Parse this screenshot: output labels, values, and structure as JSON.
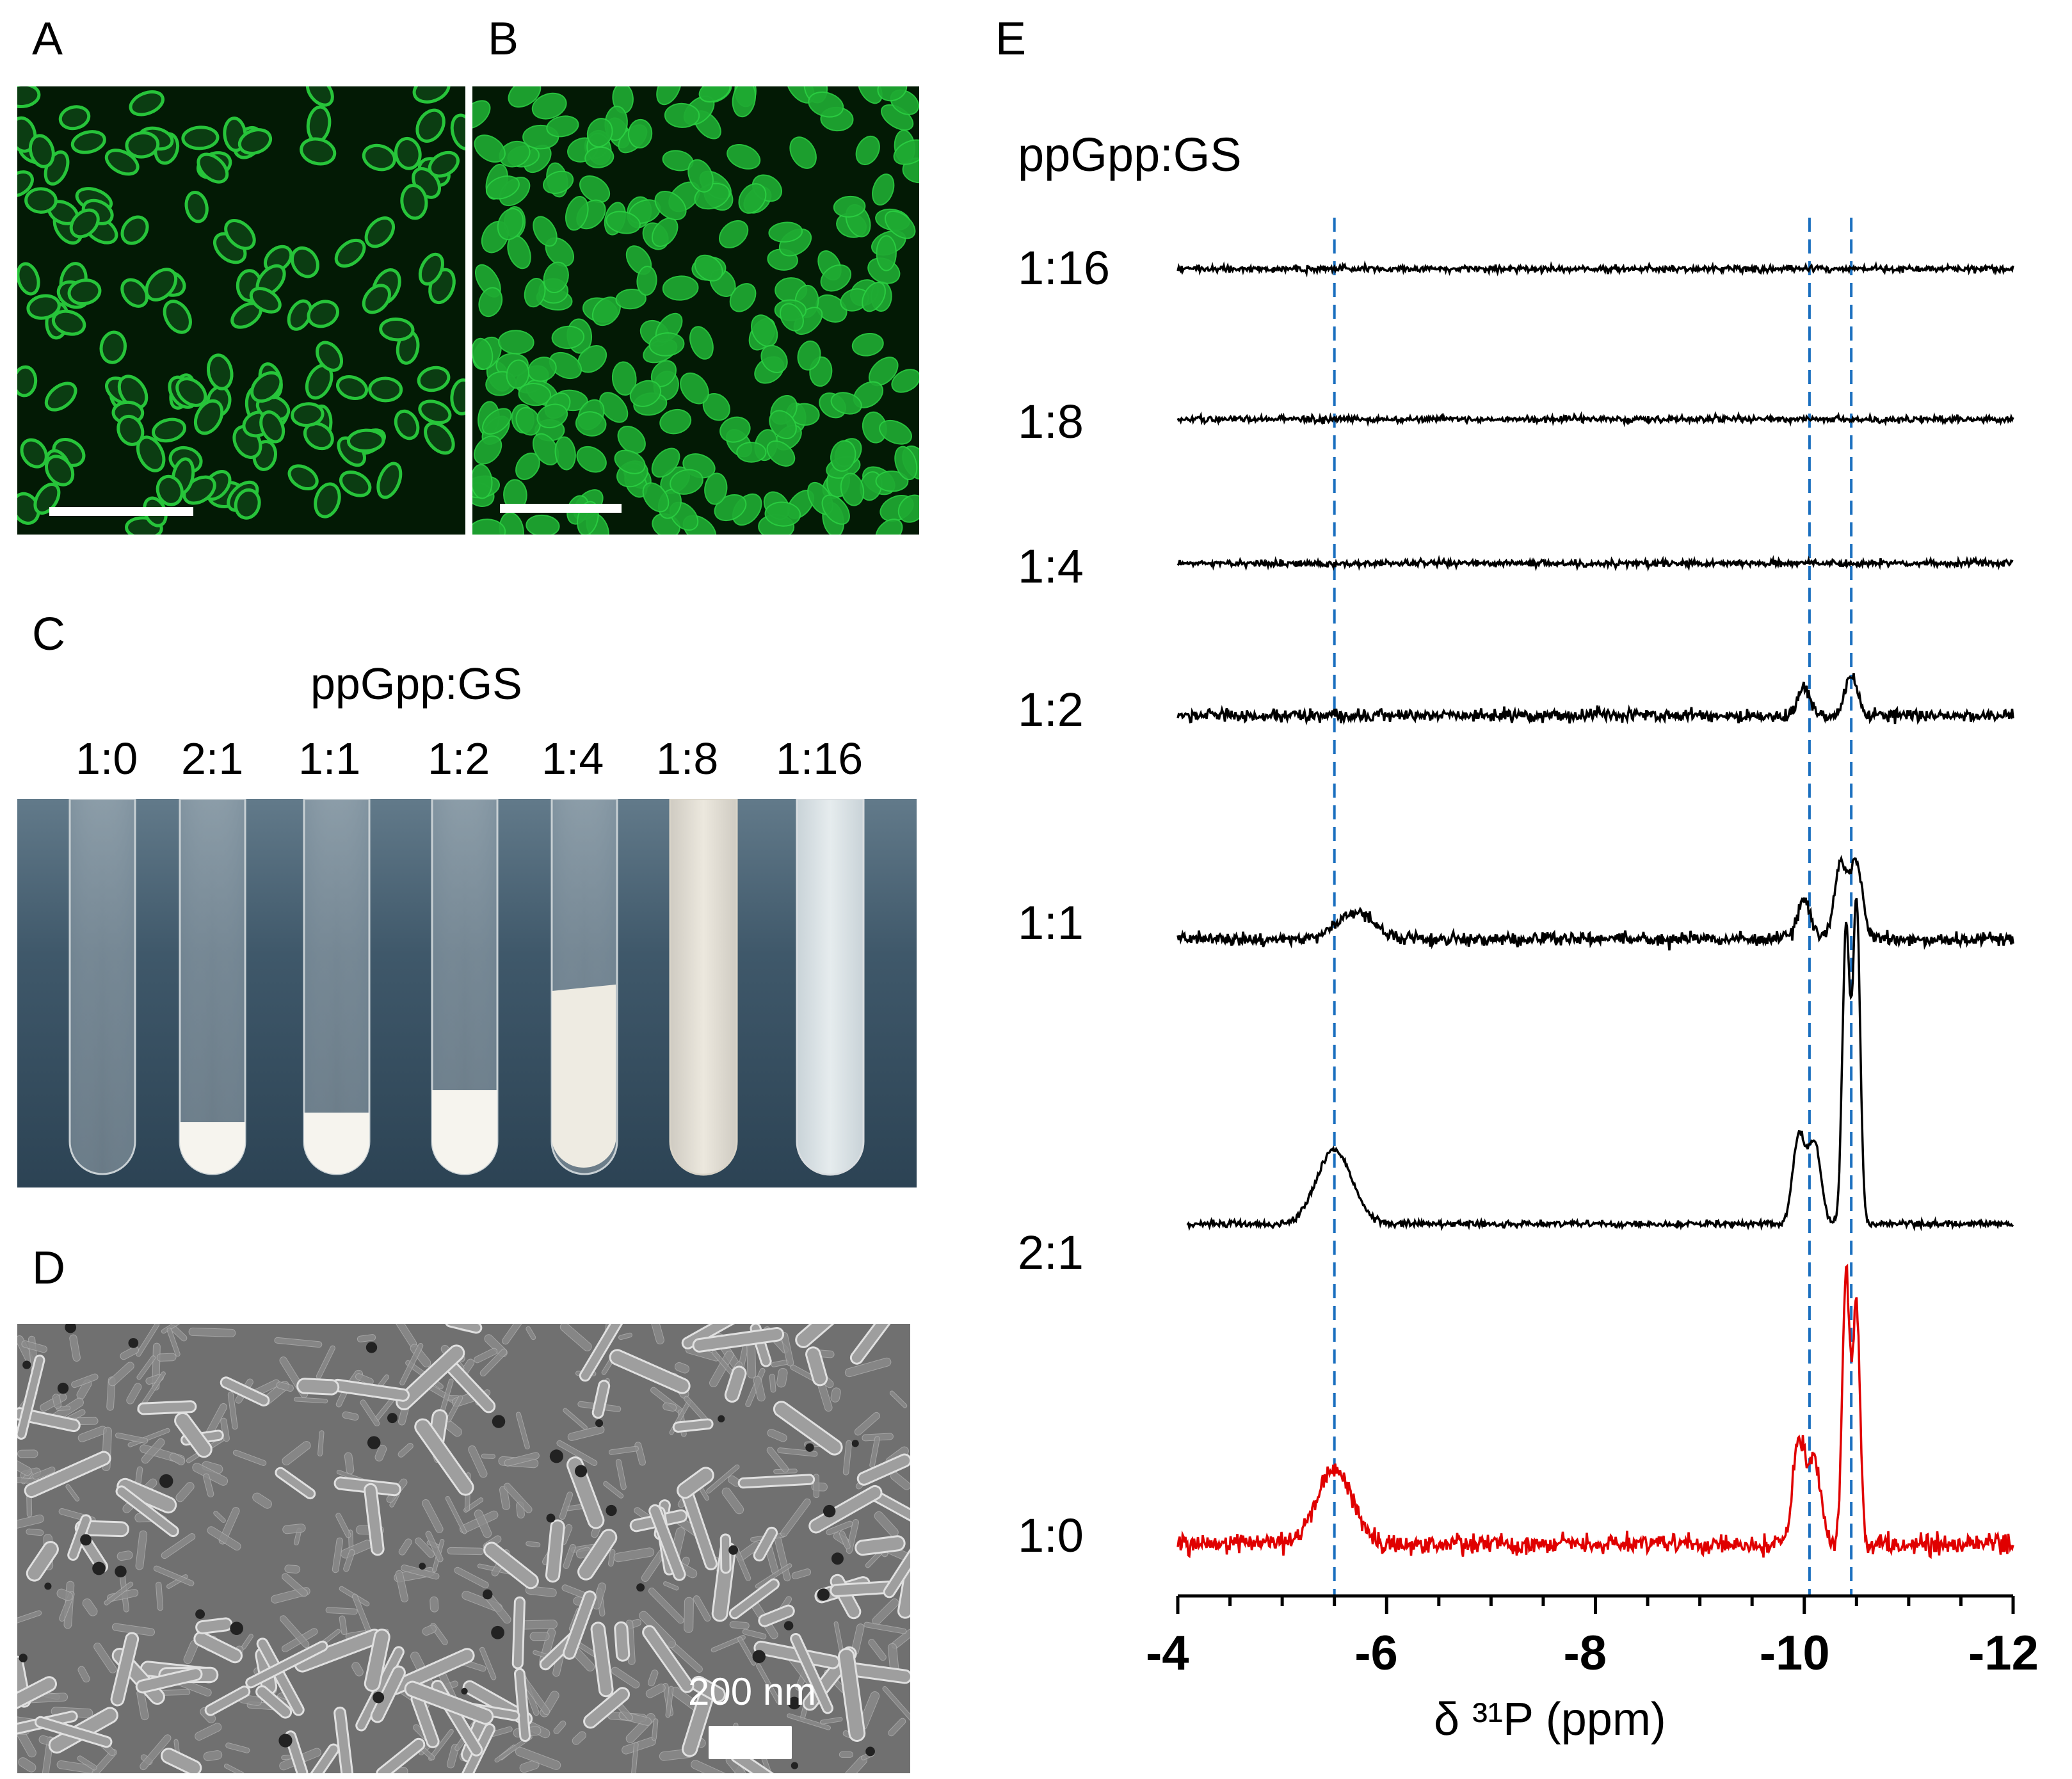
{
  "panels": {
    "a": {
      "label": "A"
    },
    "b": {
      "label": "B"
    },
    "c": {
      "label": "C",
      "title": "ppGpp:GS",
      "ratios": [
        "1:0",
        "2:1",
        "1:1",
        "1:2",
        "1:4",
        "1:8",
        "1:16"
      ],
      "background_color": "#3a5060",
      "precipitate_color": "#f4f2ea"
    },
    "d": {
      "label": "D",
      "scalebar_label": "200 nm"
    },
    "e": {
      "label": "E",
      "title": "ppGpp:GS",
      "ratios": [
        "1:16",
        "1:8",
        "1:4",
        "1:2",
        "1:1",
        "2:1",
        "1:0"
      ],
      "xlabel": "δ ³¹P (ppm)",
      "xticks": [
        "-4",
        "-6",
        "-8",
        "-10",
        "-12"
      ]
    }
  },
  "colors": {
    "fluorescence": "#27c43a",
    "sem": "#6e6e6e",
    "trace_default": "#000000",
    "trace_highlight": "#e00000",
    "dashed_guides": "#1a6fbf"
  },
  "chart_data": {
    "type": "line",
    "title": "ppGpp:GS",
    "xlabel": "δ ³¹P (ppm)",
    "xlim": [
      -4,
      -12
    ],
    "x_reversed": true,
    "xticks": [
      -4,
      -6,
      -8,
      -10,
      -12
    ],
    "reference_lines_x": [
      -5.5,
      -10.05,
      -10.45
    ],
    "series": [
      {
        "name": "1:16",
        "peaks": [],
        "noise": "low"
      },
      {
        "name": "1:8",
        "peaks": [],
        "noise": "low"
      },
      {
        "name": "1:4",
        "peaks": [],
        "noise": "low"
      },
      {
        "name": "1:2",
        "peaks": [
          {
            "x": -10.0,
            "height": 0.2
          },
          {
            "x": -10.45,
            "height": 0.3
          }
        ],
        "noise": "medium"
      },
      {
        "name": "1:1",
        "peaks": [
          {
            "x": -5.7,
            "height": 0.2
          },
          {
            "x": -10.0,
            "height": 0.3
          },
          {
            "x": -10.35,
            "height": 0.55
          },
          {
            "x": -10.5,
            "height": 0.55
          }
        ],
        "noise": "medium"
      },
      {
        "name": "2:1",
        "peaks": [
          {
            "x": -5.5,
            "height": 0.55
          },
          {
            "x": -9.95,
            "height": 0.65
          },
          {
            "x": -10.1,
            "height": 0.6
          },
          {
            "x": -10.4,
            "height": 2.2
          },
          {
            "x": -10.5,
            "height": 2.4
          }
        ],
        "noise": "low"
      },
      {
        "name": "1:0",
        "peaks": [
          {
            "x": -5.5,
            "height": 0.55
          },
          {
            "x": -9.95,
            "height": 0.75
          },
          {
            "x": -10.1,
            "height": 0.6
          },
          {
            "x": -10.4,
            "height": 2.0
          },
          {
            "x": -10.5,
            "height": 1.75
          }
        ],
        "noise": "high",
        "color": "#e00000"
      }
    ]
  }
}
